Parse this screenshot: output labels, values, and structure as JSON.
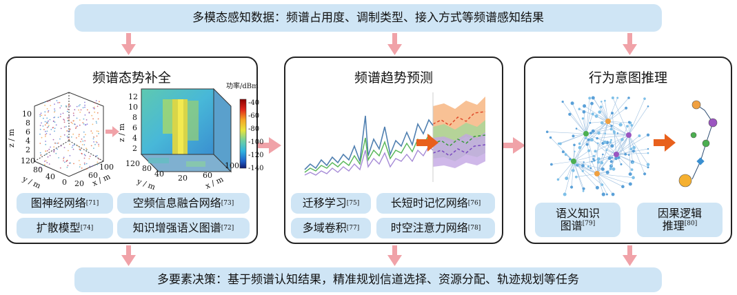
{
  "top_banner": "多模态感知数据：频谱占用度、调制类型、接入方式等频谱感知结果",
  "bottom_banner": "多要素决策：基于频谱认知结果，精准规划信道选择、资源分配、轨迹规划等任务",
  "panels": [
    {
      "title": "频谱态势补全",
      "scatter_axes": {
        "z": "z / m",
        "y": "y / m",
        "x": "x / m",
        "z_ticks": [
          "2",
          "4",
          "6",
          "8",
          "10"
        ],
        "y_ticks": [
          "120",
          "80",
          "40",
          "0"
        ],
        "x_ticks": [
          "20",
          "60",
          "100"
        ]
      },
      "map_axes": {
        "z": "z / m",
        "y": "y / m",
        "x": "x / m",
        "z_ticks": [
          "2",
          "4",
          "6",
          "8",
          "10",
          "12"
        ],
        "y_ticks": [
          "120",
          "80",
          "40"
        ],
        "x_ticks": [
          "20",
          "60",
          "100"
        ]
      },
      "colorbar": {
        "title": "功率/dBm",
        "ticks": [
          "-40",
          "-60",
          "-80",
          "-100",
          "-120",
          "-140"
        ]
      },
      "tags": [
        {
          "text": "图神经网络",
          "ref": "[71]"
        },
        {
          "text": "空频信息融合网络",
          "ref": "[73]"
        },
        {
          "text": "扩散模型",
          "ref": "[74]"
        },
        {
          "text": "知识增强语义图谱",
          "ref": "[72]"
        }
      ]
    },
    {
      "title": "频谱趋势预测",
      "tags": [
        {
          "text": "迁移学习",
          "ref": "[75]"
        },
        {
          "text": "长短时记忆网络",
          "ref": "[76]"
        },
        {
          "text": "多域卷积",
          "ref": "[77]"
        },
        {
          "text": "时空注意力网络",
          "ref": "[78]"
        }
      ]
    },
    {
      "title": "行为意图推理",
      "tags": [
        {
          "text": "语义知识",
          "text2": "图谱",
          "ref": "[79]"
        },
        {
          "text": "因果逻辑",
          "text2": "推理",
          "ref": "[80]"
        }
      ]
    }
  ],
  "colors": {
    "banner": "#cfe5f5",
    "arrow": "#f0a2a8",
    "accent_orange": "#e8601c"
  }
}
